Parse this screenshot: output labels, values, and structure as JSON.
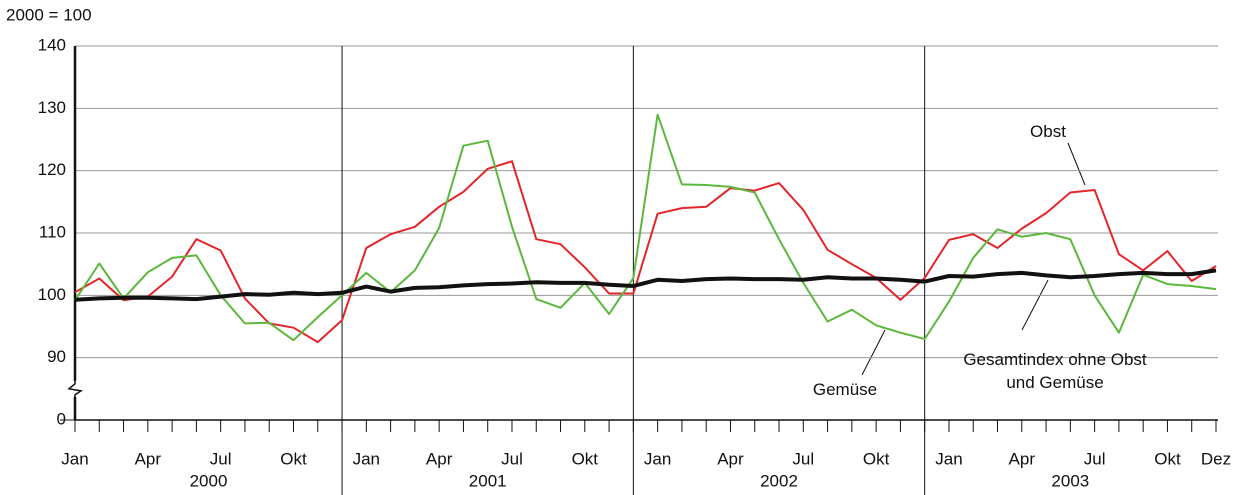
{
  "chart_data": {
    "type": "line",
    "y_label": "2000 = 100",
    "categories": [
      "Jan",
      null,
      null,
      "Apr",
      null,
      null,
      "Jul",
      null,
      null,
      "Okt",
      null,
      null,
      "Jan",
      null,
      null,
      "Apr",
      null,
      null,
      "Jul",
      null,
      null,
      "Okt",
      null,
      null,
      "Jan",
      null,
      null,
      "Apr",
      null,
      null,
      "Jul",
      null,
      null,
      "Okt",
      null,
      null,
      "Jan",
      null,
      null,
      "Apr",
      null,
      null,
      "Jul",
      null,
      null,
      "Okt",
      null,
      "Dez"
    ],
    "years": [
      "2000",
      "2001",
      "2002",
      "2003"
    ],
    "ylim": [
      0,
      140
    ],
    "yticks": [
      0,
      90,
      100,
      110,
      120,
      130,
      140
    ],
    "axis_break": true,
    "grid": true,
    "series": [
      {
        "name": "Obst",
        "color": "#e3262b",
        "values": [
          100.5,
          102.7,
          99.2,
          99.8,
          103,
          109,
          107.2,
          99.5,
          95.5,
          94.8,
          92.5,
          96,
          107.6,
          109.8,
          111,
          114.2,
          116.6,
          120.3,
          121.5,
          109,
          108.2,
          104.5,
          100.3,
          100.3,
          113.1,
          114,
          114.2,
          117.2,
          116.8,
          118,
          113.7,
          107.3,
          105,
          102.8,
          99.3,
          102.8,
          108.9,
          109.8,
          107.6,
          110.7,
          113.2,
          116.5,
          116.9,
          106.6,
          104,
          107.1,
          102.3,
          104.7
        ]
      },
      {
        "name": "Gemüse",
        "color": "#5cb83c",
        "values": [
          99.2,
          105.1,
          99.5,
          103.7,
          106,
          106.4,
          100,
          95.5,
          95.6,
          92.8,
          96.5,
          100,
          103.6,
          100.5,
          104,
          110.8,
          124,
          124.8,
          111,
          99.4,
          98,
          102,
          97,
          102.8,
          129,
          117.8,
          117.7,
          117.4,
          116.5,
          109,
          102,
          95.8,
          97.7,
          95.2,
          94,
          93,
          99,
          106,
          110.6,
          109.4,
          110,
          109,
          100,
          94,
          103.3,
          101.8,
          101.5,
          101
        ]
      },
      {
        "name": "Gesamtindex ohne Obst und Gemüse",
        "color": "#111111",
        "values": [
          99.3,
          99.5,
          99.6,
          99.6,
          99.5,
          99.4,
          99.8,
          100.2,
          100.1,
          100.4,
          100.2,
          100.4,
          101.4,
          100.6,
          101.2,
          101.3,
          101.6,
          101.8,
          101.9,
          102.1,
          102,
          102,
          101.7,
          101.5,
          102.5,
          102.3,
          102.6,
          102.7,
          102.6,
          102.6,
          102.5,
          102.9,
          102.7,
          102.7,
          102.5,
          102.2,
          103.1,
          103,
          103.4,
          103.6,
          103.2,
          102.9,
          103.1,
          103.4,
          103.6,
          103.4,
          103.4,
          104
        ]
      }
    ]
  }
}
